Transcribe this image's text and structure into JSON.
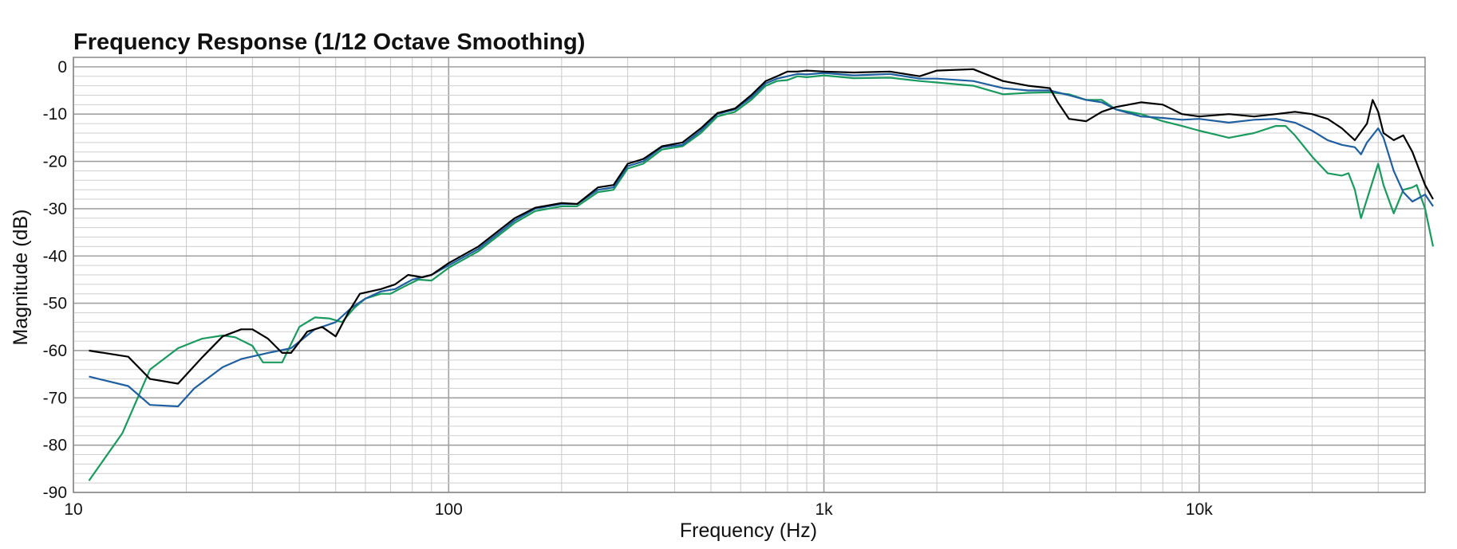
{
  "chart_data": {
    "type": "line",
    "title": "Frequency Response (1/12 Octave Smoothing)",
    "xlabel": "Frequency (Hz)",
    "ylabel": "Magnitude (dB)",
    "x_scale": "log",
    "xlim": [
      10,
      40000
    ],
    "ylim": [
      -90,
      2
    ],
    "grid": true,
    "x_ticks": [
      {
        "value": 10,
        "label": "10"
      },
      {
        "value": 100,
        "label": "100"
      },
      {
        "value": 1000,
        "label": "1k"
      },
      {
        "value": 10000,
        "label": "10k"
      }
    ],
    "y_ticks": [
      {
        "value": 0,
        "label": "0"
      },
      {
        "value": -10,
        "label": "-10"
      },
      {
        "value": -20,
        "label": "-20"
      },
      {
        "value": -30,
        "label": "-30"
      },
      {
        "value": -40,
        "label": "-40"
      },
      {
        "value": -50,
        "label": "-50"
      },
      {
        "value": -60,
        "label": "-60"
      },
      {
        "value": -70,
        "label": "-70"
      },
      {
        "value": -80,
        "label": "-80"
      },
      {
        "value": -90,
        "label": "-90"
      }
    ],
    "series": [
      {
        "color": "#1a9a5e",
        "points": [
          [
            11,
            -87.5
          ],
          [
            13.5,
            -77.5
          ],
          [
            16,
            -64
          ],
          [
            19,
            -59.5
          ],
          [
            22,
            -57.5
          ],
          [
            25,
            -56.8
          ],
          [
            27,
            -57.2
          ],
          [
            30,
            -59
          ],
          [
            32,
            -62.5
          ],
          [
            36,
            -62.5
          ],
          [
            40,
            -55
          ],
          [
            44,
            -53
          ],
          [
            48,
            -53.2
          ],
          [
            52,
            -54
          ],
          [
            56,
            -51
          ],
          [
            60,
            -49
          ],
          [
            66,
            -48
          ],
          [
            70,
            -48
          ],
          [
            76,
            -46.5
          ],
          [
            83,
            -45
          ],
          [
            90,
            -45.2
          ],
          [
            100,
            -42.5
          ],
          [
            120,
            -39
          ],
          [
            150,
            -33
          ],
          [
            170,
            -30.5
          ],
          [
            200,
            -29.5
          ],
          [
            220,
            -29.5
          ],
          [
            250,
            -26.5
          ],
          [
            275,
            -26
          ],
          [
            300,
            -21.5
          ],
          [
            330,
            -20.5
          ],
          [
            370,
            -17.5
          ],
          [
            420,
            -16.8
          ],
          [
            470,
            -14
          ],
          [
            520,
            -10.5
          ],
          [
            580,
            -9.5
          ],
          [
            640,
            -7
          ],
          [
            700,
            -4
          ],
          [
            750,
            -3
          ],
          [
            800,
            -2.8
          ],
          [
            850,
            -2
          ],
          [
            900,
            -2.2
          ],
          [
            1000,
            -1.8
          ],
          [
            1200,
            -2.4
          ],
          [
            1500,
            -2.3
          ],
          [
            1800,
            -3
          ],
          [
            2000,
            -3.3
          ],
          [
            2500,
            -4
          ],
          [
            3000,
            -5.8
          ],
          [
            3500,
            -5.5
          ],
          [
            4000,
            -5.4
          ],
          [
            4500,
            -5.8
          ],
          [
            5000,
            -7
          ],
          [
            5500,
            -7
          ],
          [
            6000,
            -9
          ],
          [
            7000,
            -10
          ],
          [
            8000,
            -11.5
          ],
          [
            9000,
            -12.5
          ],
          [
            10000,
            -13.5
          ],
          [
            12000,
            -15
          ],
          [
            14000,
            -14
          ],
          [
            16000,
            -12.5
          ],
          [
            17000,
            -12.5
          ],
          [
            18000,
            -14.5
          ],
          [
            20000,
            -19
          ],
          [
            22000,
            -22.5
          ],
          [
            24000,
            -23
          ],
          [
            25000,
            -22.5
          ],
          [
            26000,
            -26
          ],
          [
            27000,
            -32
          ],
          [
            28000,
            -28
          ],
          [
            30000,
            -20.5
          ],
          [
            31000,
            -25
          ],
          [
            33000,
            -31
          ],
          [
            35000,
            -26
          ],
          [
            37000,
            -25.5
          ],
          [
            38000,
            -25
          ],
          [
            40000,
            -30
          ],
          [
            42000,
            -38
          ]
        ]
      },
      {
        "color": "#1f5fa0",
        "points": [
          [
            11,
            -65.5
          ],
          [
            14,
            -67.5
          ],
          [
            16,
            -71.5
          ],
          [
            19,
            -71.8
          ],
          [
            21,
            -68
          ],
          [
            25,
            -63.5
          ],
          [
            28,
            -61.8
          ],
          [
            33,
            -60.5
          ],
          [
            38,
            -59.5
          ],
          [
            44,
            -55.5
          ],
          [
            50,
            -54
          ],
          [
            55,
            -51
          ],
          [
            60,
            -49
          ],
          [
            66,
            -47.5
          ],
          [
            72,
            -47
          ],
          [
            80,
            -45
          ],
          [
            90,
            -44
          ],
          [
            100,
            -42
          ],
          [
            120,
            -38.5
          ],
          [
            150,
            -32.5
          ],
          [
            170,
            -30
          ],
          [
            200,
            -29
          ],
          [
            220,
            -29
          ],
          [
            250,
            -26
          ],
          [
            275,
            -25.5
          ],
          [
            300,
            -21
          ],
          [
            330,
            -20
          ],
          [
            370,
            -17
          ],
          [
            420,
            -16.5
          ],
          [
            470,
            -13.5
          ],
          [
            520,
            -10
          ],
          [
            580,
            -9
          ],
          [
            640,
            -6.5
          ],
          [
            700,
            -3.5
          ],
          [
            750,
            -2.5
          ],
          [
            800,
            -2
          ],
          [
            850,
            -1.5
          ],
          [
            900,
            -1.6
          ],
          [
            1000,
            -1.3
          ],
          [
            1200,
            -1.8
          ],
          [
            1500,
            -1.5
          ],
          [
            1800,
            -2.5
          ],
          [
            2000,
            -2.5
          ],
          [
            2500,
            -3
          ],
          [
            3000,
            -4.5
          ],
          [
            3500,
            -5
          ],
          [
            4000,
            -5
          ],
          [
            4500,
            -6
          ],
          [
            5000,
            -7
          ],
          [
            5500,
            -7.5
          ],
          [
            6000,
            -9
          ],
          [
            7000,
            -10.5
          ],
          [
            8000,
            -10.8
          ],
          [
            9000,
            -11.2
          ],
          [
            10000,
            -11
          ],
          [
            12000,
            -11.8
          ],
          [
            14000,
            -11.2
          ],
          [
            16000,
            -11
          ],
          [
            18000,
            -11.8
          ],
          [
            20000,
            -13.5
          ],
          [
            22000,
            -15.5
          ],
          [
            24000,
            -16.5
          ],
          [
            26000,
            -17
          ],
          [
            27000,
            -18.5
          ],
          [
            28000,
            -16
          ],
          [
            30000,
            -13
          ],
          [
            31000,
            -15
          ],
          [
            33000,
            -22
          ],
          [
            35000,
            -26.5
          ],
          [
            37000,
            -28.5
          ],
          [
            38000,
            -28
          ],
          [
            40000,
            -27
          ],
          [
            42000,
            -29.5
          ]
        ]
      },
      {
        "color": "#000000",
        "points": [
          [
            11,
            -60
          ],
          [
            14,
            -61.3
          ],
          [
            16,
            -66
          ],
          [
            19,
            -67
          ],
          [
            22,
            -61.5
          ],
          [
            25,
            -57
          ],
          [
            28,
            -55.5
          ],
          [
            30,
            -55.5
          ],
          [
            33,
            -57.5
          ],
          [
            36,
            -60.5
          ],
          [
            38,
            -60.5
          ],
          [
            42,
            -56
          ],
          [
            46,
            -55
          ],
          [
            50,
            -57
          ],
          [
            54,
            -52
          ],
          [
            58,
            -48
          ],
          [
            66,
            -47
          ],
          [
            72,
            -46
          ],
          [
            78,
            -44
          ],
          [
            85,
            -44.5
          ],
          [
            90,
            -44
          ],
          [
            100,
            -41.5
          ],
          [
            120,
            -38
          ],
          [
            150,
            -32
          ],
          [
            170,
            -29.8
          ],
          [
            200,
            -28.8
          ],
          [
            220,
            -29
          ],
          [
            250,
            -25.5
          ],
          [
            275,
            -25
          ],
          [
            300,
            -20.5
          ],
          [
            330,
            -19.5
          ],
          [
            370,
            -16.8
          ],
          [
            420,
            -16
          ],
          [
            470,
            -13
          ],
          [
            520,
            -9.8
          ],
          [
            580,
            -8.8
          ],
          [
            640,
            -6
          ],
          [
            700,
            -3
          ],
          [
            750,
            -2
          ],
          [
            800,
            -1
          ],
          [
            850,
            -1
          ],
          [
            900,
            -0.8
          ],
          [
            1000,
            -1
          ],
          [
            1200,
            -1.2
          ],
          [
            1500,
            -1
          ],
          [
            1800,
            -2
          ],
          [
            2000,
            -0.8
          ],
          [
            2500,
            -0.5
          ],
          [
            3000,
            -3
          ],
          [
            3500,
            -4
          ],
          [
            4000,
            -4.5
          ],
          [
            4200,
            -7.5
          ],
          [
            4500,
            -11
          ],
          [
            5000,
            -11.5
          ],
          [
            5500,
            -9.5
          ],
          [
            6000,
            -8.5
          ],
          [
            7000,
            -7.5
          ],
          [
            8000,
            -8
          ],
          [
            9000,
            -10
          ],
          [
            10000,
            -10.5
          ],
          [
            12000,
            -10
          ],
          [
            14000,
            -10.5
          ],
          [
            16000,
            -10
          ],
          [
            18000,
            -9.5
          ],
          [
            20000,
            -10
          ],
          [
            22000,
            -11
          ],
          [
            24000,
            -13
          ],
          [
            26000,
            -15.5
          ],
          [
            28000,
            -12
          ],
          [
            29000,
            -7
          ],
          [
            30000,
            -9.5
          ],
          [
            31000,
            -14
          ],
          [
            33000,
            -15.5
          ],
          [
            35000,
            -14.5
          ],
          [
            37000,
            -18
          ],
          [
            40000,
            -25
          ],
          [
            42000,
            -28
          ]
        ]
      }
    ]
  }
}
